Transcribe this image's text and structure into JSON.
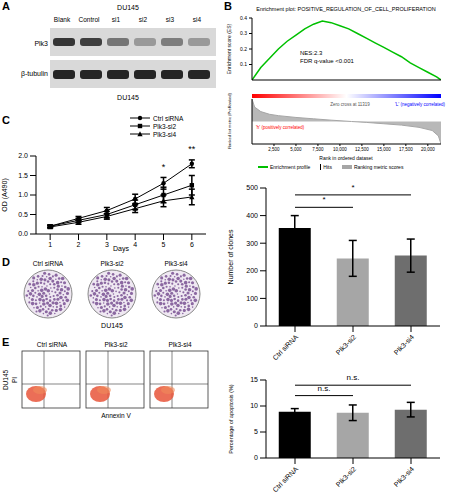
{
  "figure": {
    "panels": [
      "A",
      "B",
      "C",
      "D",
      "E"
    ],
    "blot": {
      "cell_line": "DU145",
      "lanes": [
        "Blank",
        "Control",
        "si1",
        "si2",
        "si3",
        "si4"
      ],
      "rows": [
        "Plk3",
        "β-tubulin"
      ],
      "caption": "DU145"
    },
    "colony_images": {
      "labels": [
        "Ctrl siRNA",
        "Plk3-si2",
        "Plk3-si4"
      ],
      "caption": "DU145"
    },
    "flow_images": {
      "labels": [
        "Ctrl siRNA",
        "Plk3-si2",
        "Plk3-si4"
      ],
      "y_label": "PI",
      "x_label": "Annexin V",
      "row_label": "DU145"
    }
  },
  "chart_data": [
    {
      "type": "line",
      "title": "Enrichment plot: POSITIVE_REGULATION_OF_CELL_PROLIFERATION",
      "y_label": "Enrichment score (ES)",
      "annotations": [
        "NES:2.3",
        "FDR q-value <0.001"
      ],
      "x": [
        0,
        500,
        1000,
        2000,
        3000,
        4000,
        5000,
        6000,
        7000,
        8000,
        9000,
        10000,
        11000,
        12000,
        13000,
        14000,
        15000,
        16000,
        17000,
        18000,
        19000,
        20000,
        21000,
        21500
      ],
      "series": [
        {
          "name": "Enrichment profile",
          "color": "#00c000",
          "values": [
            0,
            0.04,
            0.08,
            0.14,
            0.2,
            0.25,
            0.29,
            0.33,
            0.36,
            0.38,
            0.37,
            0.35,
            0.33,
            0.3,
            0.27,
            0.24,
            0.21,
            0.18,
            0.15,
            0.11,
            0.08,
            0.05,
            0.02,
            0
          ]
        }
      ],
      "hits": {
        "name": "Hits",
        "color": "#000000",
        "x": [
          60,
          150,
          260,
          400,
          520,
          700,
          850,
          1000,
          1200,
          1400,
          1600,
          1900,
          2100,
          2400,
          2700,
          3000,
          3300,
          3600,
          4000,
          4400,
          4800,
          5200,
          5700,
          6200,
          6800,
          7400,
          8000,
          8800,
          9600,
          10500,
          11500,
          12600,
          13800,
          15000,
          16300,
          17600,
          19000,
          20500
        ]
      },
      "xlim": [
        0,
        21500
      ],
      "ylim": [
        0,
        0.4
      ],
      "yticks": [
        {
          "value": 0,
          "label": "0.0"
        },
        0.1,
        0.2,
        0.3,
        0.4
      ],
      "tick_labels": "y"
    },
    {
      "type": "area",
      "x_label": "Rank in ordered dataset",
      "y_label": "Ranked list metric (PreRanked)",
      "annotations": [
        {
          "text": "'h' (positively correlated)",
          "color": "#ff0000"
        },
        {
          "text": "Zero cross at 11319",
          "color": "#555555"
        },
        {
          "text": "'L' (negatively correlated)",
          "color": "#0000ff"
        }
      ],
      "x": [
        0,
        300,
        1000,
        2000,
        3000,
        5000,
        7000,
        9000,
        11319,
        13000,
        15000,
        17000,
        19000,
        20500,
        21200,
        21500
      ],
      "series": [
        {
          "name": "Ranking metric scores",
          "color": "#a6a6a6",
          "values": [
            5,
            3.2,
            2.2,
            1.6,
            1.3,
            0.9,
            0.6,
            0.3,
            0,
            -0.2,
            -0.5,
            -0.8,
            -1.3,
            -2,
            -3.2,
            -5
          ]
        }
      ],
      "xlim": [
        0,
        21500
      ],
      "xticks": [
        {
          "value": 2500,
          "label": "2,500"
        },
        {
          "value": 5000,
          "label": "5,000"
        },
        {
          "value": 7500,
          "label": "7,500"
        },
        {
          "value": 10000,
          "label": "10,000"
        },
        {
          "value": 12500,
          "label": "12,500"
        },
        {
          "value": 15000,
          "label": "15,000"
        },
        {
          "value": 17500,
          "label": "17,500"
        },
        {
          "value": 20000,
          "label": "20,000"
        }
      ],
      "ylim": [
        -5,
        5
      ],
      "tick_labels": "x"
    },
    {
      "type": "line",
      "x_label": "Days",
      "y_label": "OD (A490)",
      "x": [
        1,
        2,
        3,
        4,
        5,
        6
      ],
      "series": [
        {
          "name": "Ctrl siRNA",
          "color": "#000000",
          "marker": "circle",
          "values": [
            0.2,
            0.4,
            0.6,
            0.9,
            1.3,
            1.8
          ],
          "errors": [
            0.03,
            0.05,
            0.08,
            0.12,
            0.15,
            0.1
          ]
        },
        {
          "name": "Plk3-si2",
          "color": "#000000",
          "marker": "square",
          "values": [
            0.2,
            0.35,
            0.5,
            0.75,
            1.0,
            1.25
          ],
          "errors": [
            0.03,
            0.05,
            0.08,
            0.12,
            0.2,
            0.25
          ]
        },
        {
          "name": "Plk3-si4",
          "color": "#000000",
          "marker": "triangle",
          "values": [
            0.18,
            0.3,
            0.45,
            0.65,
            0.85,
            0.95
          ],
          "errors": [
            0.03,
            0.05,
            0.07,
            0.1,
            0.15,
            0.2
          ]
        }
      ],
      "xlim": [
        0.5,
        6.5
      ],
      "xticks": [
        1,
        2,
        3,
        4,
        5,
        6
      ],
      "ylim": [
        0,
        2
      ],
      "yticks": [
        {
          "value": 0,
          "label": "0.0"
        },
        0.5,
        {
          "value": 1,
          "label": "1.0"
        },
        1.5,
        {
          "value": 2,
          "label": "2.0"
        }
      ],
      "annotations": [
        {
          "x": 5,
          "y": 1.5,
          "text": "*"
        },
        {
          "x": 6,
          "y": 1.95,
          "text": "**"
        }
      ]
    },
    {
      "type": "bar",
      "y_label": "Number of clones",
      "categories": [
        "Ctrl siRNA",
        "PIk3-si2",
        "PIk3-si4"
      ],
      "values": [
        355,
        245,
        255
      ],
      "errors": [
        45,
        65,
        60
      ],
      "colors": [
        "#000000",
        "#a6a6a6",
        "#6e6e6e"
      ],
      "ylim": [
        0,
        500
      ],
      "yticks": [
        0,
        100,
        200,
        300,
        400,
        500
      ],
      "brackets": [
        {
          "from": "Ctrl siRNA",
          "to": "PIk3-si2",
          "y": 430,
          "text": "*"
        },
        {
          "from": "Ctrl siRNA",
          "to": "PIk3-si4",
          "y": 475,
          "text": "*"
        }
      ]
    },
    {
      "type": "bar",
      "y_label": "Percentage of apoptosis (%)",
      "categories": [
        "Ctrl siRNA",
        "PIk3-si2",
        "PIk3-si4"
      ],
      "values": [
        8.9,
        8.7,
        9.3
      ],
      "errors": [
        0.6,
        1.5,
        1.4
      ],
      "colors": [
        "#000000",
        "#a6a6a6",
        "#6e6e6e"
      ],
      "ylim": [
        0,
        15
      ],
      "yticks": [
        0,
        5,
        10,
        15
      ],
      "brackets": [
        {
          "from": "Ctrl siRNA",
          "to": "PIk3-si2",
          "y": 12,
          "text": "n.s."
        },
        {
          "from": "Ctrl siRNA",
          "to": "PIk3-si4",
          "y": 14,
          "text": "n.s."
        }
      ]
    }
  ]
}
